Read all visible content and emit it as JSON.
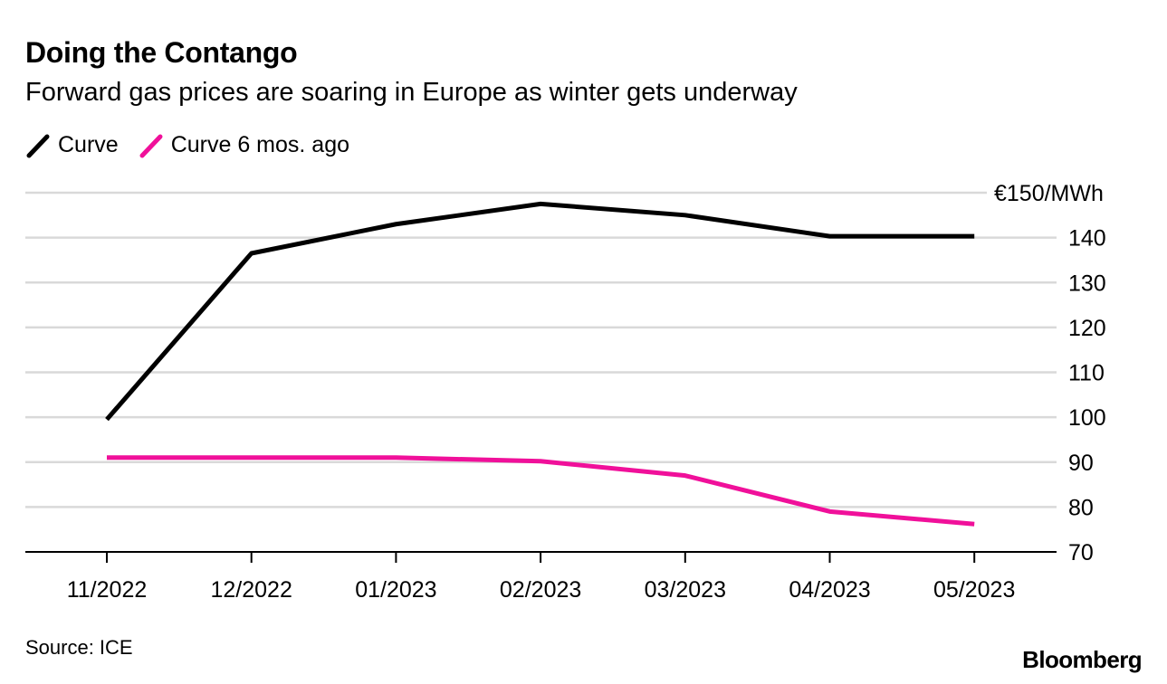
{
  "header": {
    "title": "Doing the Contango",
    "subtitle": "Forward gas prices are soaring in Europe as winter gets underway"
  },
  "footer": {
    "source": "Source: ICE",
    "brand": "Bloomberg"
  },
  "colors": {
    "series_curve": "#000000",
    "series_curve_6mo": "#f0109a",
    "gridline": "#d9d9d9",
    "axis": "#000000"
  },
  "chart_data": {
    "type": "line",
    "title": "Doing the Contango",
    "subtitle": "Forward gas prices are soaring in Europe as winter gets underway",
    "xlabel": "",
    "ylabel": "€/MWh",
    "categories": [
      "11/2022",
      "12/2022",
      "01/2023",
      "02/2023",
      "03/2023",
      "04/2023",
      "05/2023"
    ],
    "ylim": [
      70,
      150
    ],
    "yticks": [
      70,
      80,
      90,
      100,
      110,
      120,
      130,
      140,
      150
    ],
    "ytick_labels": [
      "70",
      "80",
      "90",
      "100",
      "110",
      "120",
      "130",
      "140",
      "€150/MWh"
    ],
    "grid": true,
    "legend_position": "top-left",
    "series": [
      {
        "name": "Curve",
        "color": "#000000",
        "values": [
          99.5,
          136.5,
          143,
          147.5,
          145,
          140.3,
          140.3
        ]
      },
      {
        "name": "Curve 6 mos. ago",
        "color": "#f0109a",
        "values": [
          91,
          91,
          91,
          90.2,
          87,
          79,
          76.2
        ]
      }
    ]
  }
}
